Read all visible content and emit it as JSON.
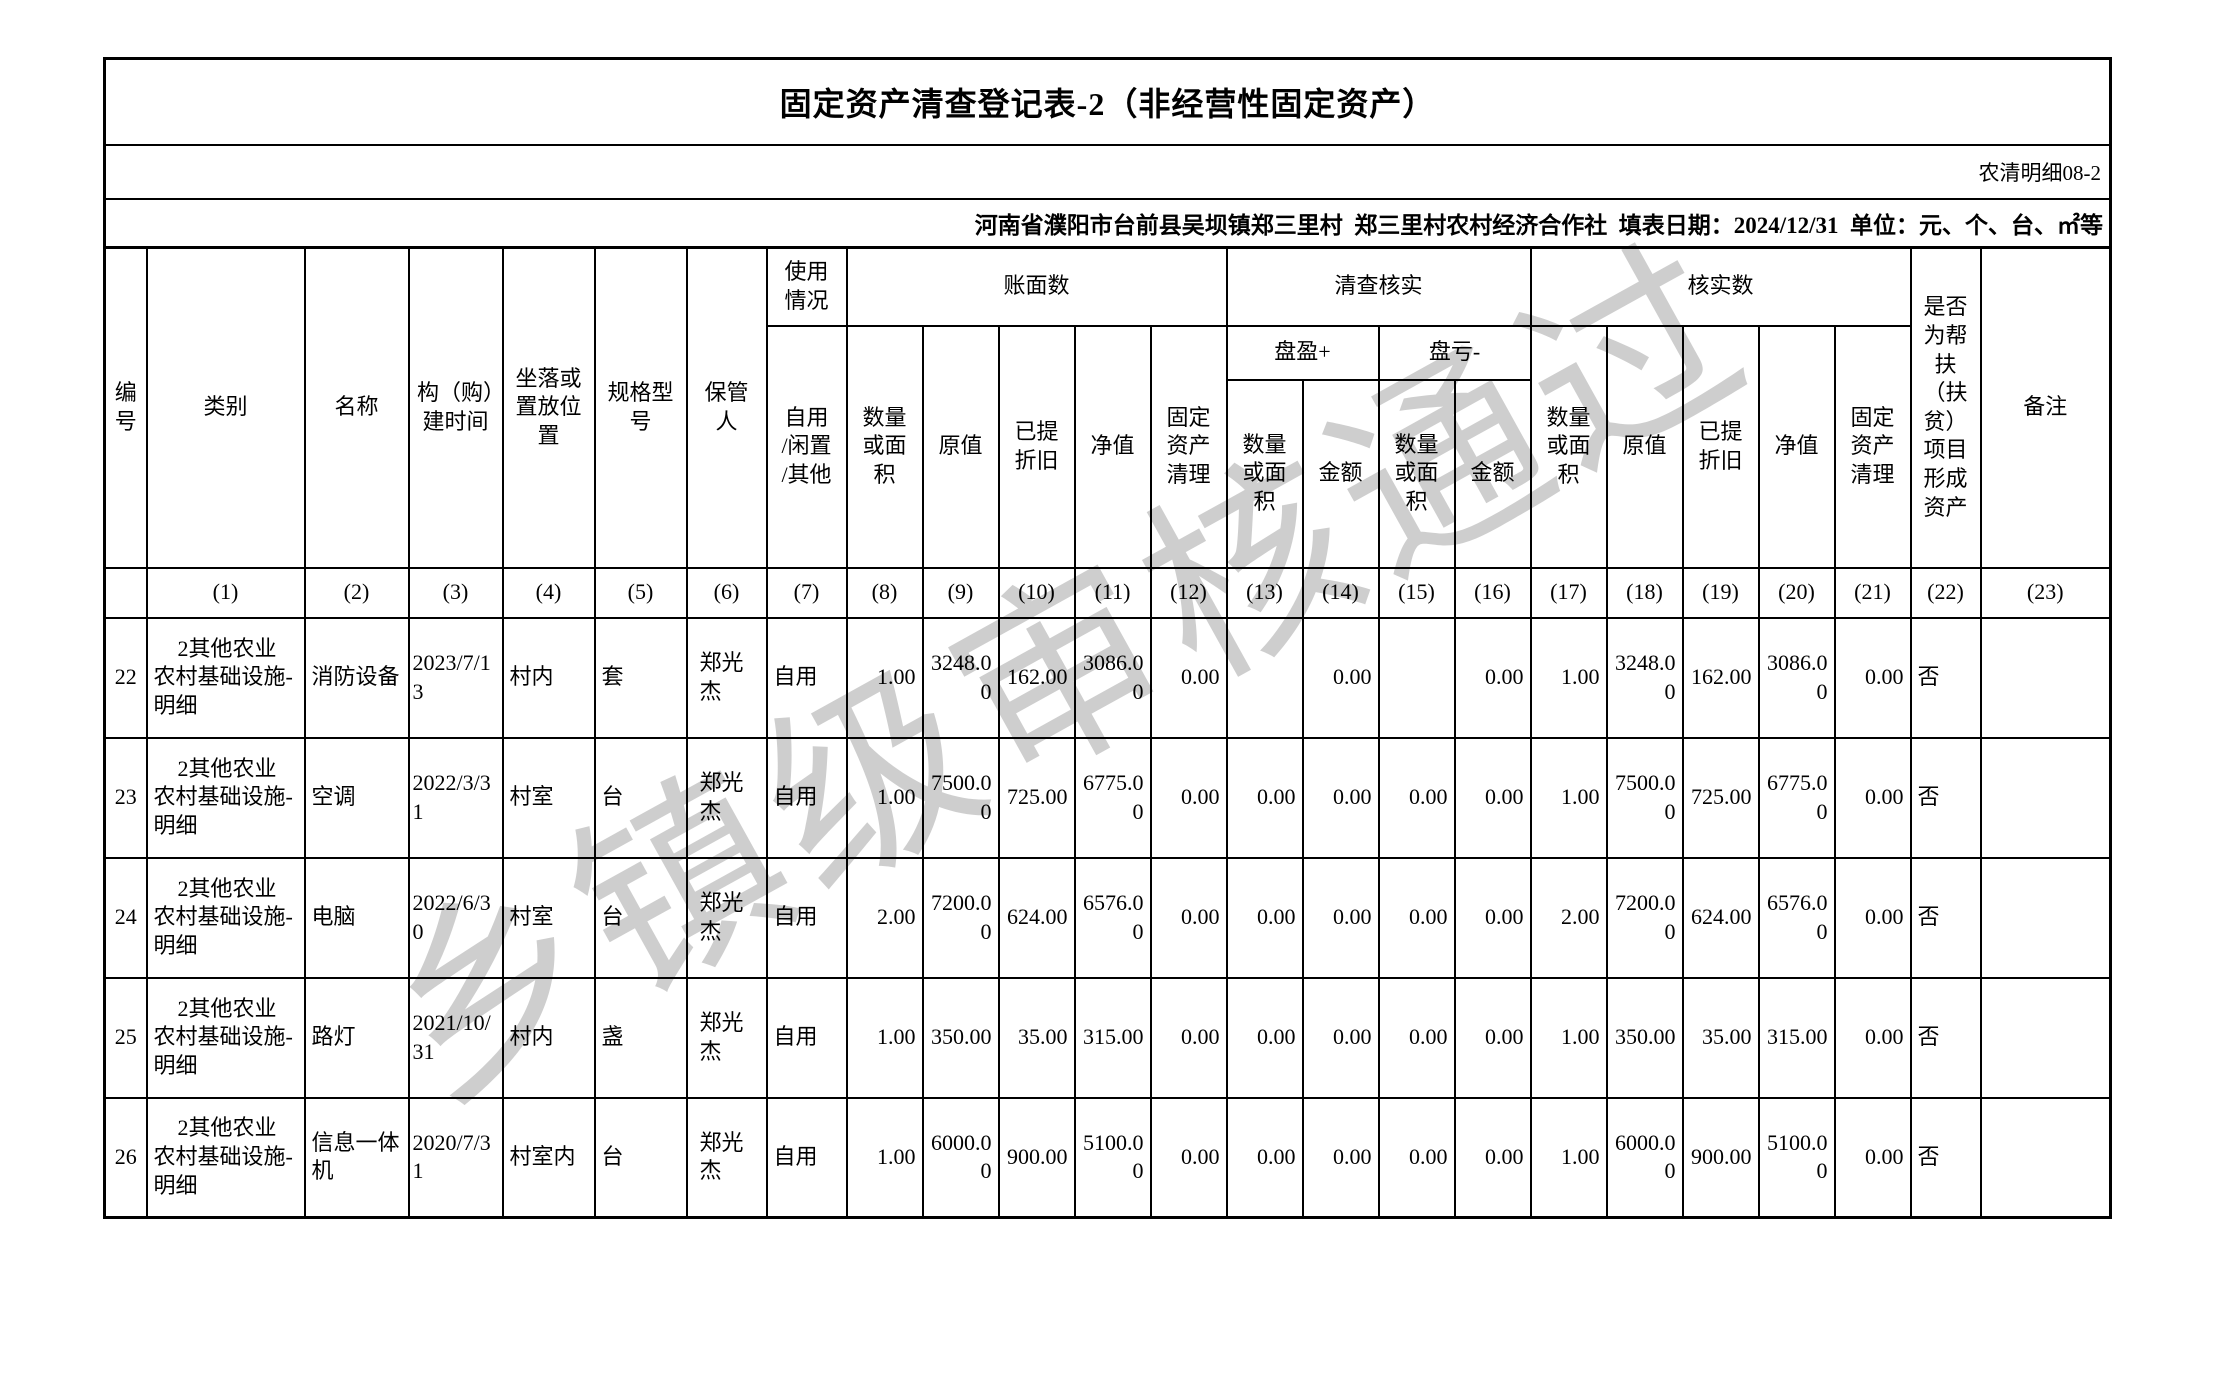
{
  "title": "固定资产清查登记表-2（非经营性固定资产）",
  "form_code": "农清明细08-2",
  "info_line": "河南省濮阳市台前县吴坝镇郑三里村  郑三里村农村经济合作社  填表日期：2024/12/31  单位：元、个、台、㎡等",
  "watermark": "乡镇级审核通过",
  "header": {
    "bianhao": "编号",
    "leibie": "类别",
    "mingcheng": "名称",
    "goujian": "构（购）建时间",
    "zuoluo": "坐落或置放位置",
    "guige": "规格型号",
    "baoguan": "保管人",
    "shiyong": "使用情况",
    "ziyong": "自用\n/闲置\n/其他",
    "zhangmian": "账面数",
    "qingcha": "清查核实",
    "heshishu": "核实数",
    "panying": "盘盈+",
    "pankui": "盘亏-",
    "shuliang": "数量或面积",
    "yuanzhi": "原值",
    "yiti": "已提折旧",
    "jingzhi": "净值",
    "guqingli": "固定资产清理",
    "jine": "金额",
    "bangfu": "是否为帮扶（扶贫）项目形成资产",
    "beizhu": "备注"
  },
  "col_numbers": [
    "",
    "(1)",
    "(2)",
    "(3)",
    "(4)",
    "(5)",
    "(6)",
    "(7)",
    "(8)",
    "(9)",
    "(10)",
    "(11)",
    "(12)",
    "(13)",
    "(14)",
    "(15)",
    "(16)",
    "(17)",
    "(18)",
    "(19)",
    "(20)",
    "(21)",
    "(22)",
    "(23)"
  ],
  "rows": [
    [
      "22",
      "2其他农业农村基础设施-明细",
      "消防设备",
      "2023/7/13",
      "村内",
      "套",
      "郑光杰",
      "自用",
      "1.00",
      "3248.00",
      "162.00",
      "3086.00",
      "0.00",
      "",
      "0.00",
      "",
      "0.00",
      "1.00",
      "3248.00",
      "162.00",
      "3086.00",
      "0.00",
      "否",
      ""
    ],
    [
      "23",
      "2其他农业农村基础设施-明细",
      "空调",
      "2022/3/31",
      "村室",
      "台",
      "郑光杰",
      "自用",
      "1.00",
      "7500.00",
      "725.00",
      "6775.00",
      "0.00",
      "0.00",
      "0.00",
      "0.00",
      "0.00",
      "1.00",
      "7500.00",
      "725.00",
      "6775.00",
      "0.00",
      "否",
      ""
    ],
    [
      "24",
      "2其他农业农村基础设施-明细",
      "电脑",
      "2022/6/30",
      "村室",
      "台",
      "郑光杰",
      "自用",
      "2.00",
      "7200.00",
      "624.00",
      "6576.00",
      "0.00",
      "0.00",
      "0.00",
      "0.00",
      "0.00",
      "2.00",
      "7200.00",
      "624.00",
      "6576.00",
      "0.00",
      "否",
      ""
    ],
    [
      "25",
      "2其他农业农村基础设施-明细",
      "路灯",
      "2021/10/31",
      "村内",
      "盏",
      "郑光杰",
      "自用",
      "1.00",
      "350.00",
      "35.00",
      "315.00",
      "0.00",
      "0.00",
      "0.00",
      "0.00",
      "0.00",
      "1.00",
      "350.00",
      "35.00",
      "315.00",
      "0.00",
      "否",
      ""
    ],
    [
      "26",
      "2其他农业农村基础设施-明细",
      "信息一体机",
      "2020/7/31",
      "村室内",
      "台",
      "郑光杰",
      "自用",
      "1.00",
      "6000.00",
      "900.00",
      "5100.00",
      "0.00",
      "0.00",
      "0.00",
      "0.00",
      "0.00",
      "1.00",
      "6000.00",
      "900.00",
      "5100.00",
      "0.00",
      "否",
      ""
    ]
  ]
}
